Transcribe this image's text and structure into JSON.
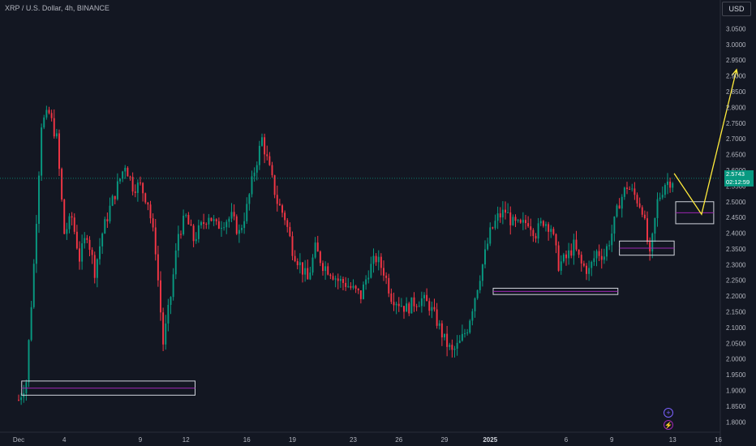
{
  "header": {
    "symbol_title": "XRP / U.S. Dollar, 4h, BINANCE",
    "currency_button": "USD"
  },
  "price_label": {
    "price": "2.5743",
    "countdown": "02:12:59"
  },
  "colors": {
    "background": "#131722",
    "up": "#089981",
    "down": "#f23645",
    "price_line": "#089981",
    "projection": "#ffeb3b",
    "zone_border": "#d1d4dc",
    "zone_midline": "#9c27b0",
    "flag_blue": "#7b61ff",
    "flag_purple": "#9c27b0"
  },
  "icons": [
    "plus-circle-icon",
    "lightning-circle-icon"
  ],
  "chart_data": {
    "type": "candlestick",
    "title": "XRP / U.S. Dollar, 4h, BINANCE",
    "ylim": [
      1.775,
      3.1
    ],
    "y_ticks": [
      "1.8000",
      "1.8500",
      "1.9000",
      "1.9500",
      "2.0000",
      "2.0500",
      "2.1000",
      "2.1500",
      "2.2000",
      "2.2500",
      "2.3000",
      "2.3500",
      "2.4000",
      "2.4500",
      "2.5000",
      "2.5500",
      "2.6000",
      "2.6500",
      "2.7000",
      "2.7500",
      "2.8000",
      "2.8500",
      "2.9000",
      "2.9500",
      "3.0000",
      "3.0500"
    ],
    "x_ticks": [
      {
        "label": "Dec",
        "day": 0
      },
      {
        "label": "4",
        "day": 3
      },
      {
        "label": "9",
        "day": 8
      },
      {
        "label": "12",
        "day": 11
      },
      {
        "label": "16",
        "day": 15
      },
      {
        "label": "19",
        "day": 18
      },
      {
        "label": "23",
        "day": 22
      },
      {
        "label": "26",
        "day": 25
      },
      {
        "label": "29",
        "day": 28
      },
      {
        "label": "2025",
        "day": 31,
        "bold": true
      },
      {
        "label": "6",
        "day": 36
      },
      {
        "label": "9",
        "day": 39
      },
      {
        "label": "13",
        "day": 43
      },
      {
        "label": "16",
        "day": 46
      }
    ],
    "last_price": 2.5743,
    "close_path": [
      [
        0,
        1.87
      ],
      [
        0.5,
        1.93
      ],
      [
        1,
        2.3
      ],
      [
        1.5,
        2.75
      ],
      [
        2,
        2.78
      ],
      [
        2.5,
        2.7
      ],
      [
        3,
        2.4
      ],
      [
        3.5,
        2.45
      ],
      [
        4,
        2.32
      ],
      [
        4.5,
        2.4
      ],
      [
        5,
        2.28
      ],
      [
        5.5,
        2.4
      ],
      [
        6,
        2.48
      ],
      [
        6.5,
        2.55
      ],
      [
        7,
        2.62
      ],
      [
        7.5,
        2.55
      ],
      [
        8,
        2.55
      ],
      [
        8.5,
        2.5
      ],
      [
        9,
        2.35
      ],
      [
        9.5,
        2.05
      ],
      [
        10,
        2.2
      ],
      [
        10.5,
        2.4
      ],
      [
        11,
        2.45
      ],
      [
        11.5,
        2.38
      ],
      [
        12,
        2.42
      ],
      [
        12.5,
        2.46
      ],
      [
        13,
        2.42
      ],
      [
        13.5,
        2.44
      ],
      [
        14,
        2.45
      ],
      [
        14.5,
        2.4
      ],
      [
        15,
        2.48
      ],
      [
        15.5,
        2.6
      ],
      [
        16,
        2.7
      ],
      [
        16.5,
        2.6
      ],
      [
        17,
        2.5
      ],
      [
        17.5,
        2.45
      ],
      [
        18,
        2.35
      ],
      [
        18.5,
        2.3
      ],
      [
        19,
        2.25
      ],
      [
        19.5,
        2.35
      ],
      [
        20,
        2.3
      ],
      [
        20.5,
        2.28
      ],
      [
        21,
        2.25
      ],
      [
        21.5,
        2.24
      ],
      [
        22,
        2.22
      ],
      [
        22.5,
        2.2
      ],
      [
        23,
        2.28
      ],
      [
        23.5,
        2.32
      ],
      [
        24,
        2.28
      ],
      [
        24.5,
        2.2
      ],
      [
        25,
        2.18
      ],
      [
        25.5,
        2.16
      ],
      [
        26,
        2.18
      ],
      [
        26.5,
        2.19
      ],
      [
        27,
        2.17
      ],
      [
        27.5,
        2.12
      ],
      [
        28,
        2.06
      ],
      [
        28.5,
        2.02
      ],
      [
        29,
        2.05
      ],
      [
        29.5,
        2.1
      ],
      [
        30,
        2.2
      ],
      [
        30.5,
        2.3
      ],
      [
        31,
        2.4
      ],
      [
        31.5,
        2.45
      ],
      [
        32,
        2.47
      ],
      [
        32.5,
        2.43
      ],
      [
        33,
        2.42
      ],
      [
        33.5,
        2.44
      ],
      [
        34,
        2.4
      ],
      [
        34.5,
        2.44
      ],
      [
        35,
        2.42
      ],
      [
        35.5,
        2.3
      ],
      [
        36,
        2.32
      ],
      [
        36.5,
        2.36
      ],
      [
        37,
        2.3
      ],
      [
        37.5,
        2.28
      ],
      [
        38,
        2.34
      ],
      [
        38.5,
        2.33
      ],
      [
        39,
        2.4
      ],
      [
        39.5,
        2.5
      ],
      [
        40,
        2.55
      ],
      [
        40.5,
        2.52
      ],
      [
        41,
        2.48
      ],
      [
        41.5,
        2.32
      ],
      [
        42,
        2.5
      ],
      [
        42.5,
        2.56
      ],
      [
        43,
        2.57
      ]
    ],
    "zones": [
      {
        "day_start": 0.2,
        "day_end": 11.6,
        "low": 1.885,
        "high": 1.93
      },
      {
        "day_start": 31.2,
        "day_end": 39.4,
        "low": 2.205,
        "high": 2.225
      },
      {
        "day_start": 39.5,
        "day_end": 43.1,
        "low": 2.33,
        "high": 2.375
      },
      {
        "day_start": 43.2,
        "day_end": 45.7,
        "low": 2.43,
        "high": 2.5
      }
    ],
    "projection": [
      [
        43.1,
        2.59
      ],
      [
        44.9,
        2.46
      ],
      [
        47.2,
        2.92
      ]
    ]
  }
}
